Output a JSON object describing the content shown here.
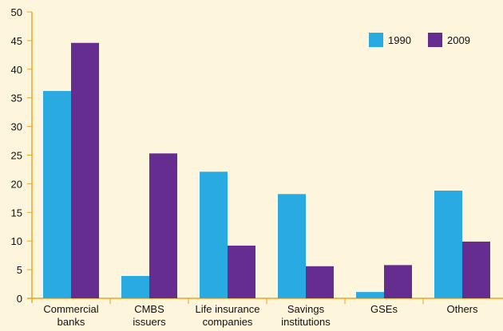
{
  "chart_data": {
    "type": "bar",
    "categories": [
      "Commercial banks",
      "CMBS issuers",
      "Life insurance companies",
      "Savings institutions",
      "GSEs",
      "Others"
    ],
    "series": [
      {
        "name": "1990",
        "color": "#29abe2",
        "values": [
          36.2,
          3.9,
          22.1,
          18.2,
          1.1,
          18.8
        ]
      },
      {
        "name": "2009",
        "color": "#662d91",
        "values": [
          44.6,
          25.3,
          9.2,
          5.6,
          5.8,
          9.9
        ]
      }
    ],
    "ylim": [
      0,
      50
    ],
    "yticks": [
      0,
      5,
      10,
      15,
      20,
      25,
      30,
      35,
      40,
      45,
      50
    ],
    "grid": false,
    "legend": "top-right"
  }
}
